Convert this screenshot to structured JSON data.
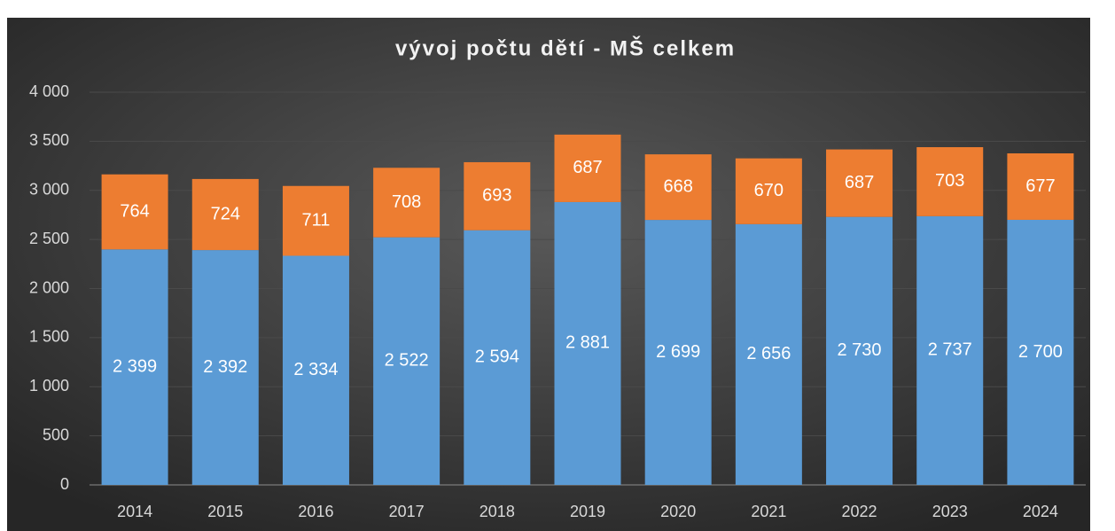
{
  "chart_data": {
    "type": "stacked_bar",
    "title": "vývoj počtu dětí - MŠ celkem",
    "categories": [
      "2014",
      "2015",
      "2016",
      "2017",
      "2018",
      "2019",
      "2020",
      "2021",
      "2022",
      "2023",
      "2024"
    ],
    "series": [
      {
        "color": "#5b9bd5",
        "values": [
          2399,
          2392,
          2334,
          2522,
          2594,
          2881,
          2699,
          2656,
          2730,
          2737,
          2700
        ],
        "value_labels": [
          "2 399",
          "2 392",
          "2 334",
          "2 522",
          "2 594",
          "2 881",
          "2 699",
          "2 656",
          "2 730",
          "2 737",
          "2 700"
        ]
      },
      {
        "color": "#ed7d31",
        "values": [
          764,
          724,
          711,
          708,
          693,
          687,
          668,
          670,
          687,
          703,
          677
        ]
      }
    ],
    "ylim": [
      0,
      4000
    ],
    "yticks": [
      0,
      500,
      {
        "value": 1000,
        "label": "1 000"
      },
      {
        "value": 1500,
        "label": "1 500"
      },
      {
        "value": 2000,
        "label": "2 000"
      },
      {
        "value": 2500,
        "label": "2 500"
      },
      {
        "value": 3000,
        "label": "3 000"
      },
      {
        "value": 3500,
        "label": "3 500"
      },
      {
        "value": 4000,
        "label": "4 000"
      }
    ],
    "grid": true
  }
}
